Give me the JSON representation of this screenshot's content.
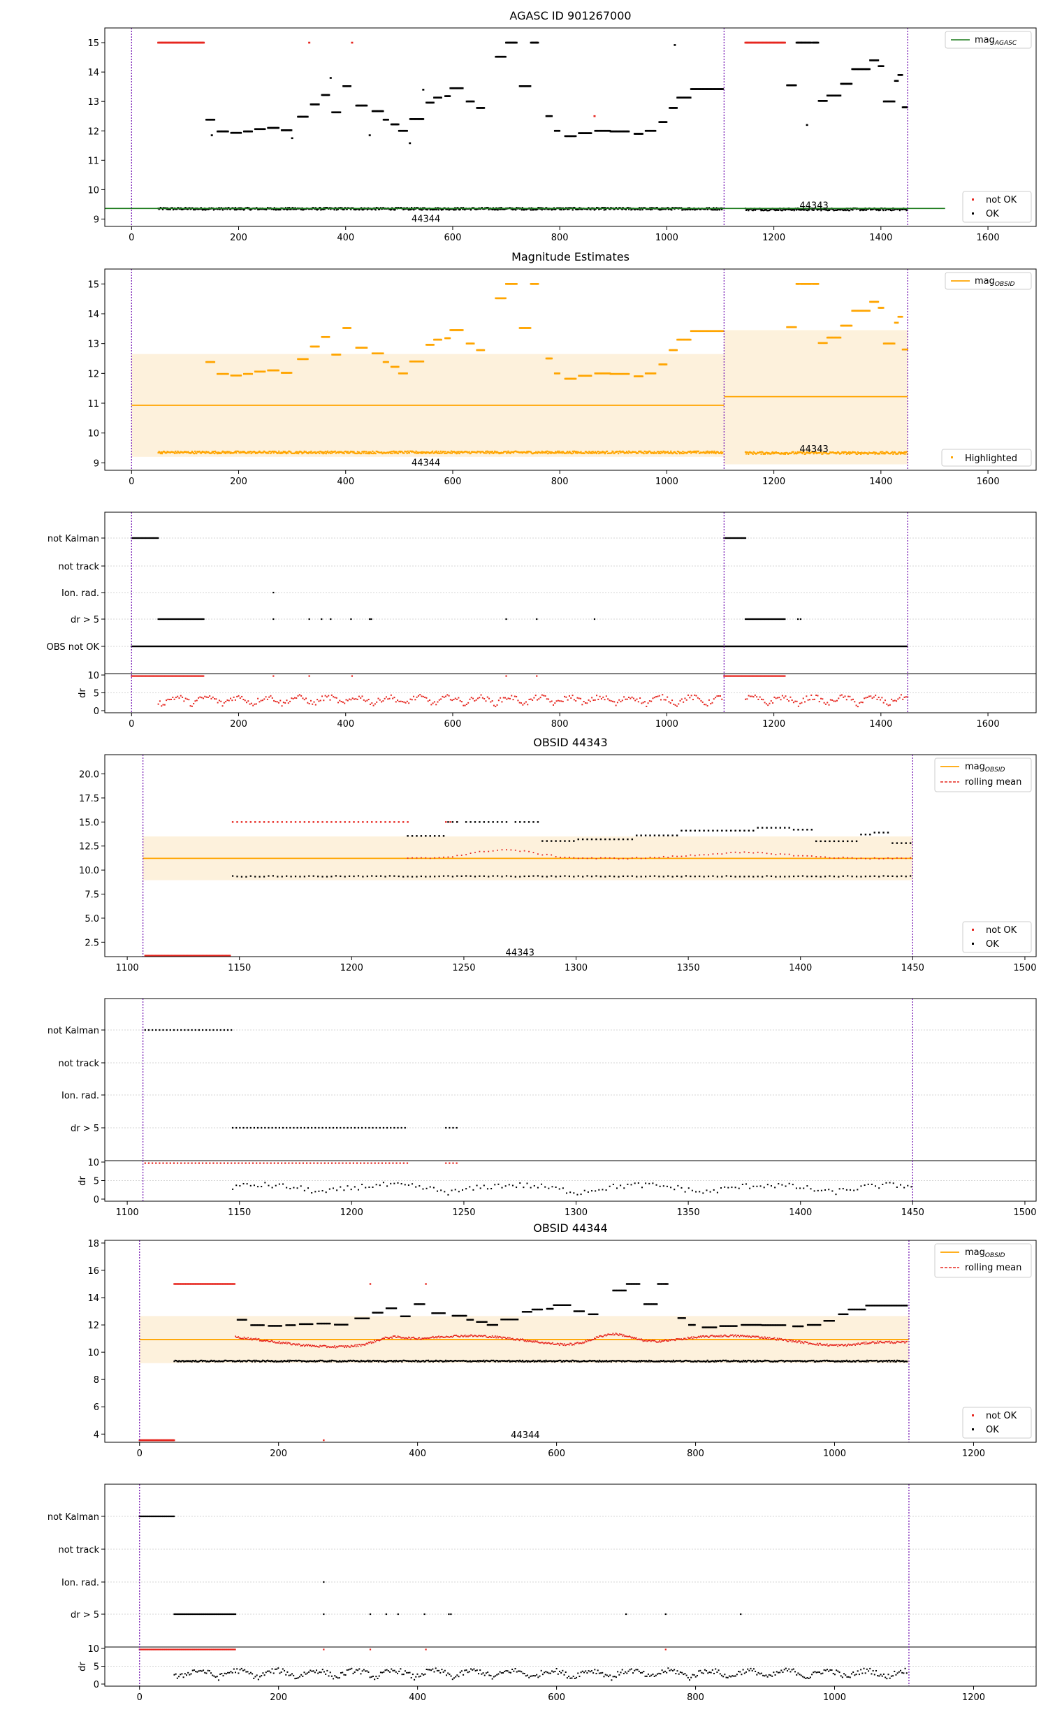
{
  "colors": {
    "ok": "#000000",
    "not_ok": "#e6261f",
    "agasc_line": "#1a7a1a",
    "obsid_line": "#ffa500",
    "band": "#fdf1dc",
    "rolling": "#e6261f",
    "divider": "#7a1fb5",
    "grid": "#c8c8c8"
  },
  "chart_data": [
    {
      "id": "agasc",
      "type": "scatter",
      "title": "AGASC ID 901267000",
      "xlim": [
        -50,
        1690
      ],
      "ylim": [
        8.75,
        15.5
      ],
      "xticks": [
        0,
        200,
        400,
        600,
        800,
        1000,
        1200,
        1400,
        1600
      ],
      "yticks": [
        9,
        10,
        11,
        12,
        13,
        14,
        15
      ],
      "dividers": [
        0,
        1107,
        1450
      ],
      "annotations": [
        {
          "text": "44344",
          "x": 550,
          "y": 9.0
        },
        {
          "text": "44343",
          "x": 1275,
          "y": 9.45
        }
      ],
      "hline": {
        "label": "mag_AGASC",
        "y": 9.36,
        "x": [
          -50,
          1520
        ]
      },
      "legend_top": {
        "label_main": "mag",
        "label_sub": "AGASC"
      },
      "legend_bottom": [
        {
          "label": "not OK",
          "kind": "not_ok"
        },
        {
          "label": "OK",
          "kind": "ok"
        }
      ]
    },
    {
      "id": "estimates",
      "type": "scatter",
      "title": "Magnitude Estimates",
      "xlim": [
        -50,
        1690
      ],
      "ylim": [
        8.75,
        15.5
      ],
      "xticks": [
        0,
        200,
        400,
        600,
        800,
        1000,
        1200,
        1400,
        1600
      ],
      "yticks": [
        9,
        10,
        11,
        12,
        13,
        14,
        15
      ],
      "dividers": [
        0,
        1107,
        1450
      ],
      "annotations": [
        {
          "text": "44344",
          "x": 550,
          "y": 9.0
        },
        {
          "text": "44343",
          "x": 1275,
          "y": 9.45
        }
      ],
      "segments": [
        {
          "x": [
            0,
            1107
          ],
          "mean": 10.93,
          "band": [
            9.2,
            12.65
          ]
        },
        {
          "x": [
            1107,
            1450
          ],
          "mean": 11.22,
          "band": [
            8.95,
            13.45
          ]
        }
      ],
      "legend_top": {
        "label_main": "mag",
        "label_sub": "OBSID"
      },
      "legend_bottom": [
        {
          "label": "Highlighted",
          "kind": "highlight"
        }
      ]
    },
    {
      "id": "flags_all",
      "type": "scatter",
      "xlim": [
        -50,
        1690
      ],
      "xticks": [
        0,
        200,
        400,
        600,
        800,
        1000,
        1200,
        1400,
        1600
      ],
      "dividers": [
        0,
        1107,
        1450
      ],
      "flag_labels": [
        "not Kalman",
        "not track",
        "Ion. rad.",
        "dr > 5",
        "OBS not OK"
      ],
      "dr_label": "dr",
      "dr_ylim": [
        0,
        10
      ],
      "dr_yticks": [
        0,
        5,
        10
      ]
    },
    {
      "id": "obs44343",
      "type": "scatter",
      "title": "OBSID 44343",
      "xlim": [
        1090,
        1505
      ],
      "ylim": [
        1.0,
        22.0
      ],
      "xticks": [
        1100,
        1150,
        1200,
        1250,
        1300,
        1350,
        1400,
        1450,
        1500
      ],
      "yticks": [
        2.5,
        5.0,
        7.5,
        10.0,
        12.5,
        15.0,
        17.5,
        20.0
      ],
      "dividers": [
        1107,
        1450
      ],
      "annotations": [
        {
          "text": "44343",
          "x": 1275,
          "y": 1.4
        }
      ],
      "mean": 11.22,
      "band": [
        8.95,
        13.5
      ],
      "legend_top": [
        {
          "label_main": "mag",
          "label_sub": "OBSID",
          "kind": "line"
        },
        {
          "label_main": "rolling mean",
          "label_sub": "",
          "kind": "dash"
        }
      ],
      "legend_bottom": [
        {
          "label": "not OK",
          "kind": "not_ok"
        },
        {
          "label": "OK",
          "kind": "ok"
        }
      ]
    },
    {
      "id": "flags_44343",
      "type": "scatter",
      "xlim": [
        1090,
        1505
      ],
      "xticks": [
        1100,
        1150,
        1200,
        1250,
        1300,
        1350,
        1400,
        1450,
        1500
      ],
      "dividers": [
        1107,
        1450
      ],
      "flag_labels": [
        "not Kalman",
        "not track",
        "Ion. rad.",
        "dr > 5"
      ],
      "dr_label": "dr",
      "dr_ylim": [
        0,
        10
      ],
      "dr_yticks": [
        0,
        5,
        10
      ]
    },
    {
      "id": "obs44344",
      "type": "scatter",
      "title": "OBSID 44344",
      "xlim": [
        -50,
        1290
      ],
      "ylim": [
        3.4,
        18.2
      ],
      "xticks": [
        0,
        200,
        400,
        600,
        800,
        1000,
        1200
      ],
      "yticks": [
        4,
        6,
        8,
        10,
        12,
        14,
        16,
        18
      ],
      "dividers": [
        0,
        1107
      ],
      "annotations": [
        {
          "text": "44344",
          "x": 555,
          "y": 3.9
        }
      ],
      "mean": 10.93,
      "band": [
        9.2,
        12.65
      ],
      "legend_top": [
        {
          "label_main": "mag",
          "label_sub": "OBSID",
          "kind": "line"
        },
        {
          "label_main": "rolling mean",
          "label_sub": "",
          "kind": "dash"
        }
      ],
      "legend_bottom": [
        {
          "label": "not OK",
          "kind": "not_ok"
        },
        {
          "label": "OK",
          "kind": "ok"
        }
      ]
    },
    {
      "id": "flags_44344",
      "type": "scatter",
      "xlim": [
        -50,
        1290
      ],
      "xticks": [
        0,
        200,
        400,
        600,
        800,
        1000,
        1200
      ],
      "dividers": [
        0,
        1107
      ],
      "flag_labels": [
        "not Kalman",
        "not track",
        "Ion. rad.",
        "dr > 5"
      ],
      "dr_label": "dr",
      "dr_ylim": [
        0,
        10
      ],
      "dr_yticks": [
        0,
        5,
        10
      ]
    }
  ]
}
